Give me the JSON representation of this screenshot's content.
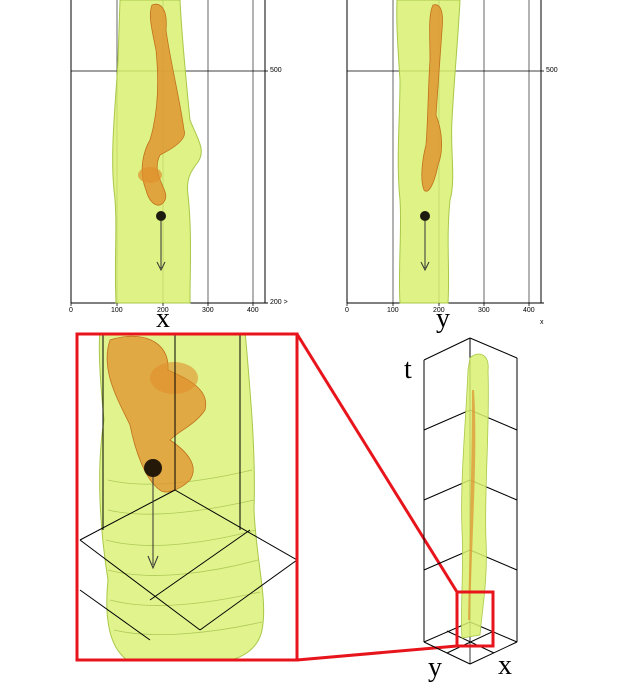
{
  "panels": {
    "xt_view": {
      "axis_label": "x",
      "ticks_x": [
        "0",
        "100",
        "200",
        "300",
        "400"
      ],
      "ticks_extra": "200 >",
      "ticks_y": [
        "500"
      ]
    },
    "yt_view": {
      "axis_label": "y",
      "ticks_x": [
        "0",
        "100",
        "200",
        "300",
        "400"
      ],
      "ticks_extra": "x",
      "ticks_y": [
        "500"
      ]
    },
    "box_3d": {
      "axis_t": "t",
      "axis_x": "x",
      "axis_y": "y"
    }
  },
  "colors": {
    "tube": "#d8f070",
    "core": "#e0902c",
    "zoom_frame": "#e8141c"
  }
}
